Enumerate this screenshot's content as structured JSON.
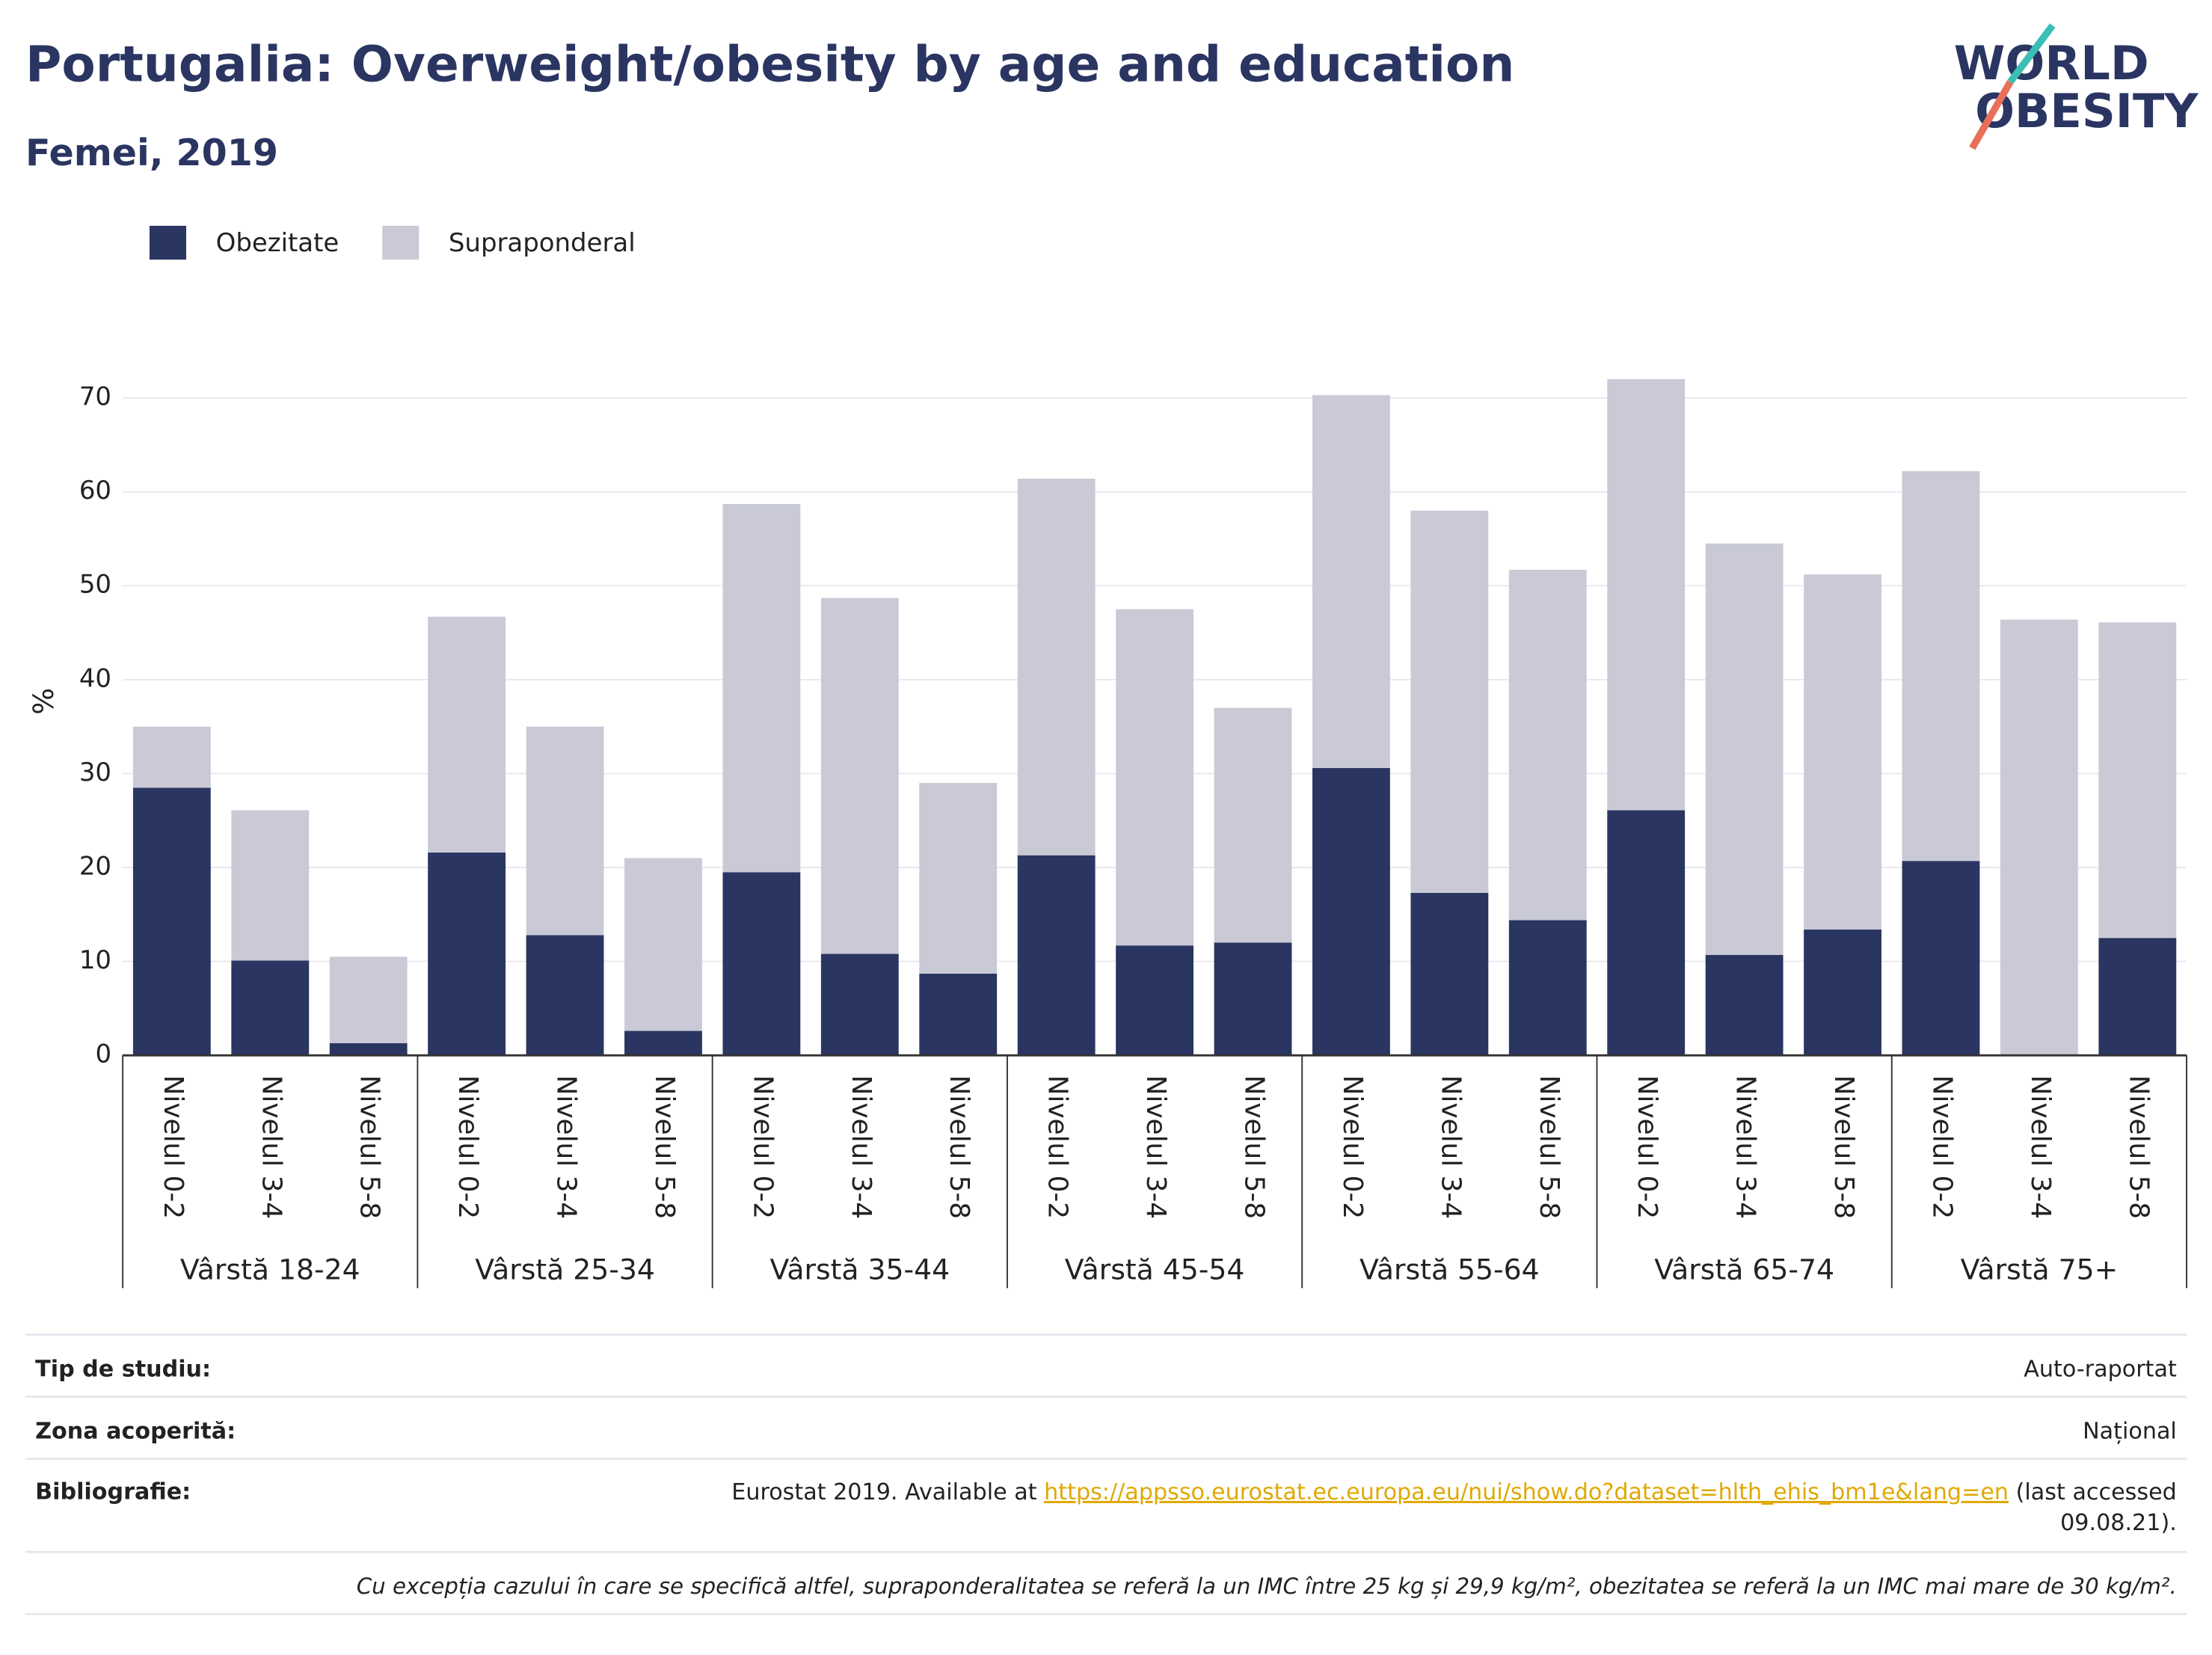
{
  "chart_data": {
    "type": "stacked_bar",
    "title": "Portugalia: Overweight/obesity by age and education",
    "subtitle": "Femei, 2019",
    "logo": [
      "WORLD",
      "OBESITY"
    ],
    "y_label": "%",
    "categories": [
      "Nivelul 0-2",
      "Nivelul 3-4",
      "Nivelul 5-8",
      "Nivelul 0-2",
      "Nivelul 3-4",
      "Nivelul 5-8",
      "Nivelul 0-2",
      "Nivelul 3-4",
      "Nivelul 5-8",
      "Nivelul 0-2",
      "Nivelul 3-4",
      "Nivelul 5-8",
      "Nivelul 0-2",
      "Nivelul 3-4",
      "Nivelul 5-8",
      "Nivelul 0-2",
      "Nivelul 3-4",
      "Nivelul 5-8",
      "Nivelul 0-2",
      "Nivelul 3-4",
      "Nivelul 5-8"
    ],
    "groups": [
      "Vârstă 18-24",
      "Vârstă 25-34",
      "Vârstă 35-44",
      "Vârstă 45-54",
      "Vârstă 55-64",
      "Vârstă 65-74",
      "Vârstă 75+"
    ],
    "series": [
      {
        "name": "Obezitate",
        "color": "#2a3562",
        "values": [
          28.5,
          10.1,
          1.3,
          21.6,
          12.8,
          2.6,
          19.5,
          10.8,
          8.7,
          21.3,
          11.7,
          12.0,
          30.6,
          17.3,
          14.4,
          26.1,
          10.7,
          13.4,
          20.7,
          0,
          12.5
        ]
      },
      {
        "name": "Supraponderal",
        "color": "#c9cad6",
        "values": [
          6.5,
          16.0,
          9.2,
          25.1,
          22.2,
          18.4,
          39.2,
          37.9,
          20.3,
          40.1,
          35.8,
          25.0,
          39.7,
          40.7,
          37.3,
          45.9,
          43.8,
          37.8,
          41.5,
          46.4,
          33.6
        ]
      }
    ],
    "ylim": [
      0,
      70
    ],
    "yticks": [
      0,
      10,
      20,
      30,
      40,
      50,
      60,
      70
    ],
    "grid": true,
    "legend": "top-left"
  },
  "footer": {
    "rows": [
      {
        "label": "Tip de studiu:",
        "value": "Auto-raportat"
      },
      {
        "label": "Zona acoperită:",
        "value": "Național"
      }
    ],
    "bibliography": {
      "label": "Bibliografie:",
      "text": "Eurostat 2019. Available at",
      "link": "https://appsso.eurostat.ec.europa.eu/nui/show.do?dataset=hlth_ehis_bm1e&lang=en",
      "after1": "(last accessed",
      "after2": "09.08.21)."
    },
    "note": "Cu excepția cazului în care se specifică altfel, supraponderalitatea se referă la un IMC între 25 kg și 29,9 kg/m², obezitatea se referă la un IMC mai mare de 30 kg/m²."
  }
}
